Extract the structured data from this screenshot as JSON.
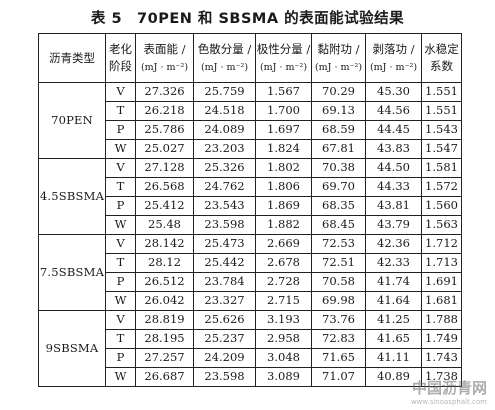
{
  "caption": "表 5　70PEN 和 SBSMA 的表面能试验结果",
  "headers": {
    "asphalt_type": "沥青类型",
    "aging_stage": [
      "老化",
      "阶段"
    ],
    "surface_energy": [
      "表面能 /",
      "(mJ · m⁻²)"
    ],
    "dispersive": [
      "色散分量 /",
      "(mJ · m⁻²)"
    ],
    "polar": [
      "极性分量 /",
      "(mJ · m⁻²)"
    ],
    "adhesion": [
      "黏附功 /",
      "(mJ · m⁻²)"
    ],
    "peeling": [
      "剥落功 /",
      "(mJ · m⁻²)"
    ],
    "water_stability": [
      "水稳定",
      "系数"
    ]
  },
  "groups": [
    {
      "name": "70PEN",
      "rows": [
        [
          "V",
          "27.326",
          "25.759",
          "1.567",
          "70.29",
          "45.30",
          "1.551"
        ],
        [
          "T",
          "26.218",
          "24.518",
          "1.700",
          "69.13",
          "44.56",
          "1.551"
        ],
        [
          "P",
          "25.786",
          "24.089",
          "1.697",
          "68.59",
          "44.45",
          "1.543"
        ],
        [
          "W",
          "25.027",
          "23.203",
          "1.824",
          "67.81",
          "43.83",
          "1.547"
        ]
      ]
    },
    {
      "name": "4.5SBSMA",
      "rows": [
        [
          "V",
          "27.128",
          "25.326",
          "1.802",
          "70.38",
          "44.50",
          "1.581"
        ],
        [
          "T",
          "26.568",
          "24.762",
          "1.806",
          "69.70",
          "44.33",
          "1.572"
        ],
        [
          "P",
          "25.412",
          "23.543",
          "1.869",
          "68.35",
          "43.81",
          "1.560"
        ],
        [
          "W",
          "25.48",
          "23.598",
          "1.882",
          "68.45",
          "43.79",
          "1.563"
        ]
      ]
    },
    {
      "name": "7.5SBSMA",
      "rows": [
        [
          "V",
          "28.142",
          "25.473",
          "2.669",
          "72.53",
          "42.36",
          "1.712"
        ],
        [
          "T",
          "28.12",
          "25.442",
          "2.678",
          "72.51",
          "42.33",
          "1.713"
        ],
        [
          "P",
          "26.512",
          "23.784",
          "2.728",
          "70.58",
          "41.74",
          "1.691"
        ],
        [
          "W",
          "26.042",
          "23.327",
          "2.715",
          "69.98",
          "41.64",
          "1.681"
        ]
      ]
    },
    {
      "name": "9SBSMA",
      "rows": [
        [
          "V",
          "28.819",
          "25.626",
          "3.193",
          "73.76",
          "41.25",
          "1.788"
        ],
        [
          "T",
          "28.195",
          "25.237",
          "2.958",
          "72.83",
          "41.65",
          "1.749"
        ],
        [
          "P",
          "27.257",
          "24.209",
          "3.048",
          "71.65",
          "41.11",
          "1.743"
        ],
        [
          "W",
          "26.687",
          "23.598",
          "3.089",
          "71.07",
          "40.89",
          "1.738"
        ]
      ]
    }
  ],
  "watermark": {
    "main": "中国沥青网",
    "sub": "www.sinoasphalt.com"
  }
}
